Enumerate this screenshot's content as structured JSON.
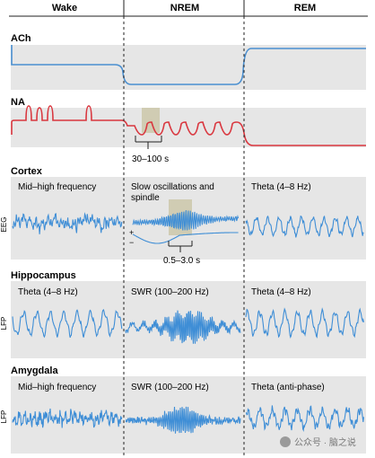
{
  "header": {
    "wake": "Wake",
    "nrem": "NREM",
    "rem": "REM"
  },
  "sections": {
    "ach": {
      "title": "ACh"
    },
    "na": {
      "title": "NA",
      "period_label": "30–100 s"
    },
    "cortex": {
      "title": "Cortex",
      "axis_label": "EEG",
      "wake_label": "Mid–high frequency",
      "nrem_label_line1": "Slow oscillations and",
      "nrem_label_line2": "spindle",
      "rem_label": "Theta (4–8 Hz)",
      "plus": "+",
      "minus": "−",
      "spindle_duration": "0.5–3.0 s"
    },
    "hippocampus": {
      "title": "Hippocampus",
      "axis_label": "LFP",
      "wake_label": "Theta (4–8 Hz)",
      "nrem_label": "SWR (100–200 Hz)",
      "rem_label": "Theta (4–8 Hz)"
    },
    "amygdala": {
      "title": "Amygdala",
      "axis_label": "LFP",
      "wake_label": "Mid–high frequency",
      "nrem_label": "SWR (100–200 Hz)",
      "rem_label": "Theta (anti-phase)"
    }
  },
  "watermark": "公众号 · 脑之说",
  "colors": {
    "panel": "#e6e6e6",
    "ach_line": "#4a8fd0",
    "na_line": "#d9363e",
    "wave": "#3f8ed6",
    "highlight": "#c8c3a2"
  }
}
